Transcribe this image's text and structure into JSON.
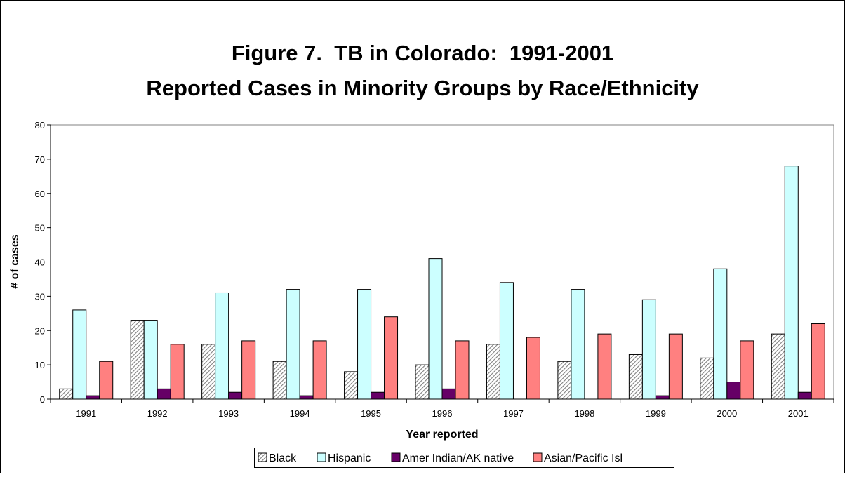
{
  "chart_data": {
    "type": "bar",
    "title": "Figure 7.  TB in Colorado:  1991-2001",
    "subtitle": "Reported Cases in Minority Groups by Race/Ethnicity",
    "x_label": "Year reported",
    "y_label": "# of cases",
    "categories": [
      "1991",
      "1992",
      "1993",
      "1994",
      "1995",
      "1996",
      "1997",
      "1998",
      "1999",
      "2000",
      "2001"
    ],
    "series": [
      {
        "name": "Black",
        "color": "#808080",
        "pattern": "hatch",
        "values": [
          3,
          23,
          16,
          11,
          8,
          10,
          16,
          11,
          13,
          12,
          19
        ]
      },
      {
        "name": "Hispanic",
        "color": "#ccffff",
        "values": [
          26,
          23,
          31,
          32,
          32,
          41,
          34,
          32,
          29,
          38,
          68
        ]
      },
      {
        "name": "Amer Indian/AK native",
        "color": "#660066",
        "values": [
          1,
          3,
          2,
          1,
          2,
          3,
          0,
          0,
          1,
          5,
          2
        ]
      },
      {
        "name": "Asian/Pacific Isl",
        "color": "#ff8080",
        "values": [
          11,
          16,
          17,
          17,
          24,
          17,
          18,
          19,
          19,
          17,
          22
        ]
      }
    ],
    "ylim": [
      0,
      80
    ],
    "yticks": [
      0,
      10,
      20,
      30,
      40,
      50,
      60,
      70,
      80
    ],
    "grid": false,
    "legend": "bottom"
  }
}
